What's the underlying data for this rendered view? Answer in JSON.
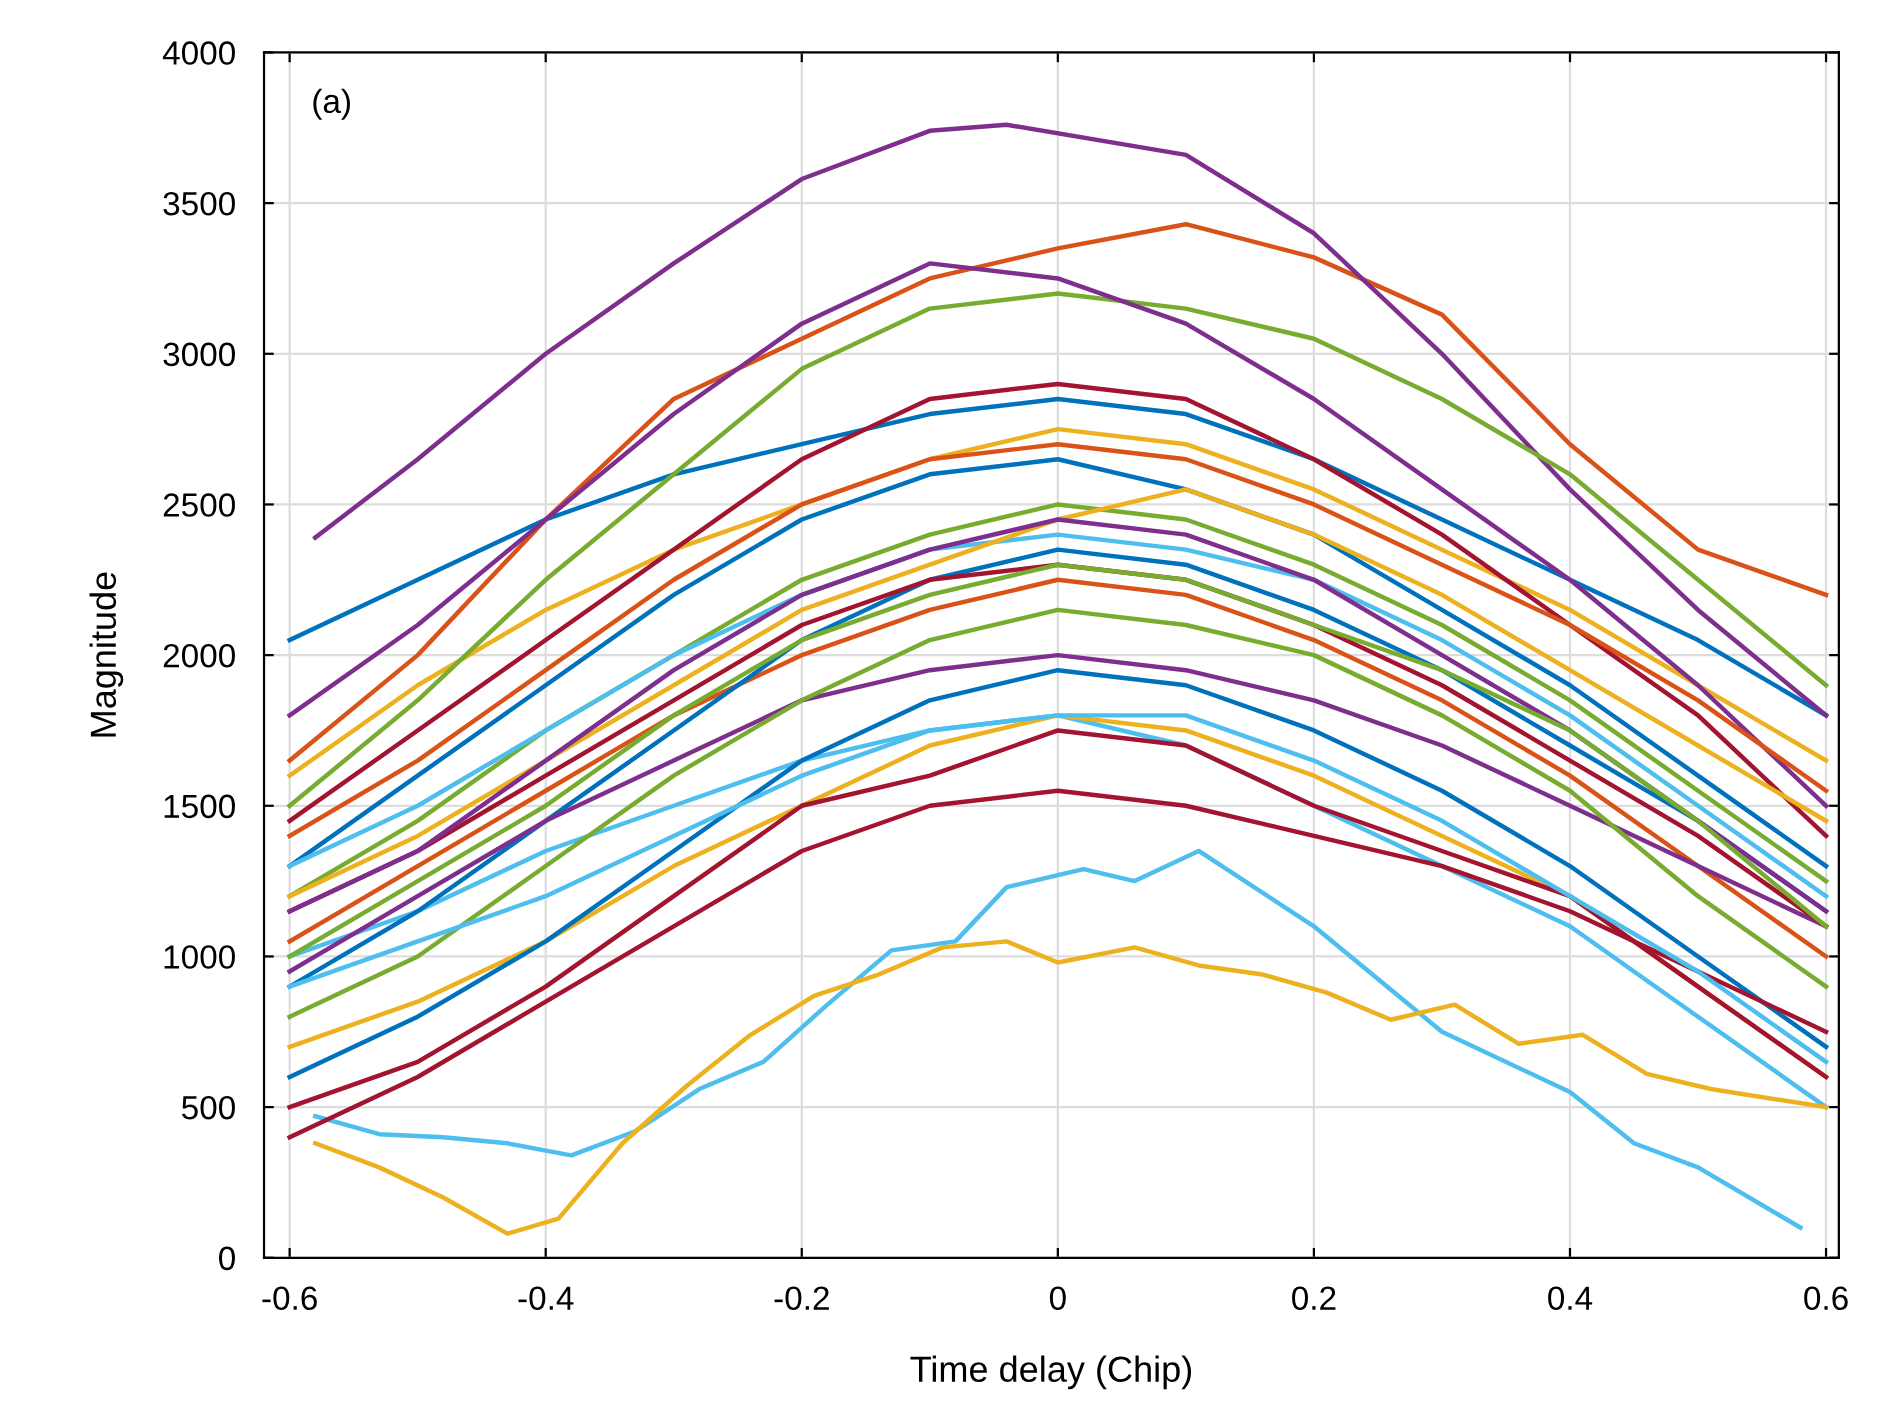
{
  "chart_data": {
    "type": "line",
    "xlabel": "Time delay (Chip)",
    "ylabel": "Magnitude",
    "annotations": [
      "(a)"
    ],
    "xlim": [
      -0.62,
      0.61
    ],
    "ylim": [
      0,
      4000
    ],
    "xticks": [
      -0.6,
      -0.4,
      -0.2,
      0,
      0.2,
      0.4,
      0.6
    ],
    "yticks": [
      0,
      500,
      1000,
      1500,
      2000,
      2500,
      3000,
      3500,
      4000
    ],
    "grid": true,
    "marker": "none",
    "line_style": "solid",
    "x": [
      -0.6,
      -0.5,
      -0.4,
      -0.3,
      -0.2,
      -0.1,
      0,
      0.1,
      0.2,
      0.3,
      0.4,
      0.5,
      0.6
    ],
    "series": [
      {
        "color": "#0072bd",
        "values": [
          2050,
          2250,
          2450,
          2600,
          2700,
          2800,
          2850,
          2800,
          2650,
          2450,
          2250,
          2050,
          1800
        ]
      },
      {
        "color": "#d95319",
        "values": [
          1650,
          2000,
          2450,
          2850,
          3050,
          3250,
          3350,
          3430,
          3320,
          3130,
          2700,
          2350,
          2200
        ]
      },
      {
        "color": "#edb120",
        "values": [
          1600,
          1900,
          2150,
          2350,
          2500,
          2650,
          2750,
          2700,
          2550,
          2350,
          2150,
          1900,
          1650
        ]
      },
      {
        "color": "#7e2f8e",
        "x": [
          -0.58,
          -0.5,
          -0.4,
          -0.3,
          -0.2,
          -0.1,
          -0.04,
          0.1,
          0.2,
          0.3,
          0.4,
          0.5,
          0.6
        ],
        "values": [
          2390,
          2650,
          3000,
          3300,
          3580,
          3740,
          3760,
          3660,
          3400,
          3000,
          2550,
          2150,
          1800
        ]
      },
      {
        "color": "#77ac30",
        "values": [
          1500,
          1850,
          2250,
          2600,
          2950,
          3150,
          3200,
          3150,
          3050,
          2850,
          2600,
          2250,
          1900
        ]
      },
      {
        "color": "#4dbeee",
        "values": [
          1000,
          1150,
          1350,
          1500,
          1650,
          1750,
          1800,
          1700,
          1500,
          1300,
          1100,
          800,
          500
        ]
      },
      {
        "color": "#a2142f",
        "values": [
          1450,
          1750,
          2050,
          2350,
          2650,
          2850,
          2900,
          2850,
          2650,
          2400,
          2100,
          1800,
          1400
        ]
      },
      {
        "color": "#0072bd",
        "values": [
          1300,
          1600,
          1900,
          2200,
          2450,
          2600,
          2650,
          2550,
          2400,
          2150,
          1900,
          1600,
          1300
        ]
      },
      {
        "color": "#d95319",
        "values": [
          1050,
          1300,
          1550,
          1800,
          2000,
          2150,
          2250,
          2200,
          2050,
          1850,
          1600,
          1300,
          1000
        ]
      },
      {
        "color": "#edb120",
        "values": [
          700,
          850,
          1050,
          1300,
          1500,
          1700,
          1800,
          1750,
          1600,
          1400,
          1200,
          900,
          600
        ]
      },
      {
        "color": "#7e2f8e",
        "values": [
          1800,
          2100,
          2450,
          2800,
          3100,
          3300,
          3250,
          3100,
          2850,
          2550,
          2250,
          1900,
          1500
        ]
      },
      {
        "color": "#77ac30",
        "values": [
          1200,
          1450,
          1750,
          2000,
          2250,
          2400,
          2500,
          2450,
          2300,
          2100,
          1850,
          1550,
          1250
        ]
      },
      {
        "color": "#4dbeee",
        "values": [
          1300,
          1500,
          1750,
          2000,
          2200,
          2350,
          2400,
          2350,
          2250,
          2050,
          1800,
          1500,
          1200
        ]
      },
      {
        "color": "#a2142f",
        "values": [
          500,
          650,
          900,
          1200,
          1500,
          1600,
          1750,
          1700,
          1500,
          1350,
          1200,
          900,
          600
        ]
      },
      {
        "color": "#0072bd",
        "values": [
          900,
          1150,
          1450,
          1750,
          2050,
          2250,
          2350,
          2300,
          2150,
          1950,
          1700,
          1450,
          1150
        ]
      },
      {
        "color": "#d95319",
        "values": [
          1400,
          1650,
          1950,
          2250,
          2500,
          2650,
          2700,
          2650,
          2500,
          2300,
          2100,
          1850,
          1550
        ]
      },
      {
        "color": "#edb120",
        "values": [
          1200,
          1400,
          1650,
          1900,
          2150,
          2300,
          2450,
          2550,
          2400,
          2200,
          1950,
          1700,
          1450
        ]
      },
      {
        "color": "#7e2f8e",
        "values": [
          950,
          1200,
          1450,
          1650,
          1850,
          1950,
          2000,
          1950,
          1850,
          1700,
          1500,
          1300,
          1100
        ]
      },
      {
        "color": "#77ac30",
        "values": [
          800,
          1000,
          1300,
          1600,
          1850,
          2050,
          2150,
          2100,
          2000,
          1800,
          1550,
          1200,
          900
        ]
      },
      {
        "color": "#4dbeee",
        "x": [
          -0.58,
          -0.53,
          -0.48,
          -0.43,
          -0.38,
          -0.33,
          -0.28,
          -0.23,
          -0.18,
          -0.13,
          -0.08,
          -0.04,
          0.02,
          0.06,
          0.11,
          0.2,
          0.3,
          0.4,
          0.45,
          0.5,
          0.58
        ],
        "values": [
          470,
          410,
          400,
          380,
          340,
          420,
          560,
          650,
          840,
          1020,
          1050,
          1230,
          1290,
          1250,
          1350,
          1100,
          750,
          550,
          380,
          300,
          100
        ]
      },
      {
        "color": "#a2142f",
        "values": [
          1150,
          1350,
          1600,
          1850,
          2100,
          2250,
          2300,
          2250,
          2100,
          1900,
          1650,
          1400,
          1100
        ]
      },
      {
        "color": "#0072bd",
        "values": [
          600,
          800,
          1050,
          1350,
          1650,
          1850,
          1950,
          1900,
          1750,
          1550,
          1300,
          1000,
          700
        ]
      },
      {
        "color": "#a2142f",
        "values": [
          400,
          600,
          850,
          1100,
          1350,
          1500,
          1550,
          1500,
          1400,
          1300,
          1150,
          950,
          750
        ]
      },
      {
        "color": "#edb120",
        "x": [
          -0.58,
          -0.53,
          -0.48,
          -0.43,
          -0.39,
          -0.34,
          -0.29,
          -0.24,
          -0.19,
          -0.14,
          -0.09,
          -0.04,
          0.0,
          0.06,
          0.11,
          0.16,
          0.21,
          0.26,
          0.31,
          0.36,
          0.41,
          0.46,
          0.51,
          0.6
        ],
        "values": [
          380,
          300,
          200,
          80,
          130,
          380,
          570,
          740,
          870,
          940,
          1030,
          1050,
          980,
          1030,
          970,
          940,
          880,
          790,
          840,
          710,
          740,
          610,
          560,
          500
        ]
      },
      {
        "color": "#7e2f8e",
        "values": [
          1150,
          1350,
          1650,
          1950,
          2200,
          2350,
          2450,
          2400,
          2250,
          2000,
          1750,
          1450,
          1150
        ]
      },
      {
        "color": "#77ac30",
        "values": [
          1000,
          1250,
          1500,
          1800,
          2050,
          2200,
          2300,
          2250,
          2100,
          1950,
          1750,
          1450,
          1100
        ]
      },
      {
        "color": "#4dbeee",
        "values": [
          900,
          1050,
          1200,
          1400,
          1600,
          1750,
          1800,
          1800,
          1650,
          1450,
          1200,
          950,
          650
        ]
      }
    ]
  }
}
